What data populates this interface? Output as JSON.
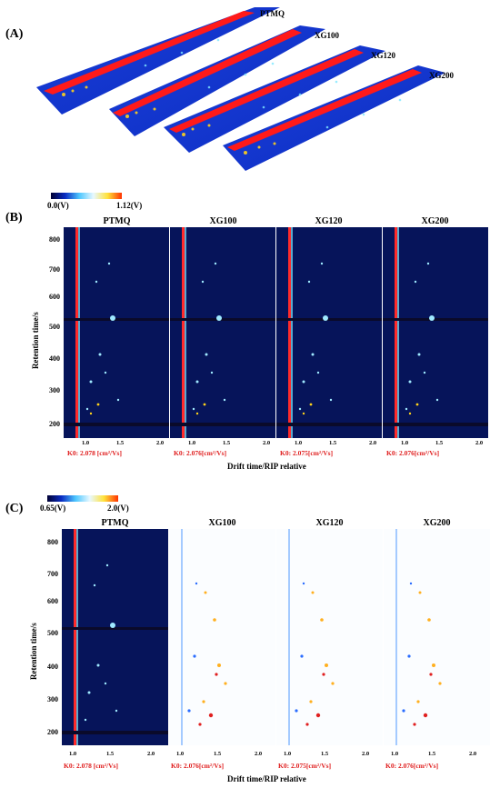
{
  "panelA": {
    "letter": "(A)",
    "samples": [
      "PTMQ",
      "XG100",
      "XG120",
      "XG200"
    ]
  },
  "panelB": {
    "letter": "(B)",
    "colorbar": {
      "min": "0.0(V)",
      "max": "1.12(V)"
    },
    "samples": [
      "PTMQ",
      "XG100",
      "XG120",
      "XG200"
    ],
    "k0": [
      "K0: 2.078 [cm²/Vs]",
      "K0: 2.076[cm²/Vs]",
      "K0: 2.075[cm²/Vs]",
      "K0: 2.076[cm²/Vs]"
    ],
    "ylabel": "Retention time/s",
    "xlabel": "Drift time/RIP relative",
    "yticks": [
      "800",
      "700",
      "600",
      "500",
      "400",
      "300",
      "200"
    ],
    "xticks": [
      "1.0",
      "1.5",
      "2.0"
    ]
  },
  "panelC": {
    "letter": "(C)",
    "colorbar": {
      "min": "0.65(V)",
      "max": "2.0(V)"
    },
    "samples": [
      "PTMQ",
      "XG100",
      "XG120",
      "XG200"
    ],
    "k0": [
      "K0: 2.078 [cm²/Vs]",
      "K0: 2.076[cm²/Vs]",
      "K0: 2.075[cm²/Vs]",
      "K0: 2.076[cm²/Vs]"
    ],
    "ylabel": "Retention time/s",
    "xlabel": "Drift time/RIP relative",
    "yticks": [
      "800",
      "700",
      "600",
      "500",
      "400",
      "300",
      "200"
    ],
    "xticks": [
      "1.0",
      "1.5",
      "2.0"
    ]
  }
}
